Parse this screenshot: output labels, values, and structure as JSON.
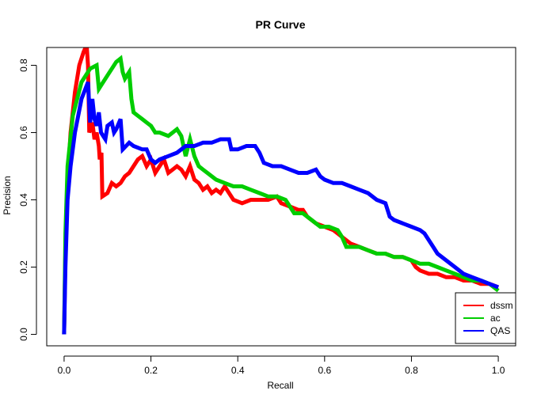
{
  "chart_data": {
    "type": "line",
    "title": "PR Curve",
    "xlabel": "Recall",
    "ylabel": "Precision",
    "xlim": [
      -0.04,
      1.04
    ],
    "ylim": [
      -0.034,
      0.853
    ],
    "xticks": [
      0.0,
      0.2,
      0.4,
      0.6,
      0.8,
      1.0
    ],
    "xtick_labels": [
      "0.0",
      "0.2",
      "0.4",
      "0.6",
      "0.8",
      "1.0"
    ],
    "yticks": [
      0.0,
      0.2,
      0.4,
      0.6,
      0.8
    ],
    "ytick_labels": [
      "0.0",
      "0.2",
      "0.4",
      "0.6",
      "0.8"
    ],
    "legend_position": "bottom-right",
    "series": [
      {
        "name": "dssm",
        "color": "#ff0000",
        "points": [
          [
            0.0,
            0.0
          ],
          [
            0.003,
            0.25
          ],
          [
            0.008,
            0.45
          ],
          [
            0.015,
            0.6
          ],
          [
            0.025,
            0.72
          ],
          [
            0.035,
            0.8
          ],
          [
            0.045,
            0.84
          ],
          [
            0.052,
            0.86
          ],
          [
            0.055,
            0.8
          ],
          [
            0.058,
            0.6
          ],
          [
            0.065,
            0.63
          ],
          [
            0.07,
            0.58
          ],
          [
            0.075,
            0.6
          ],
          [
            0.08,
            0.56
          ],
          [
            0.082,
            0.52
          ],
          [
            0.086,
            0.54
          ],
          [
            0.088,
            0.41
          ],
          [
            0.1,
            0.42
          ],
          [
            0.11,
            0.45
          ],
          [
            0.12,
            0.44
          ],
          [
            0.13,
            0.45
          ],
          [
            0.14,
            0.47
          ],
          [
            0.15,
            0.48
          ],
          [
            0.16,
            0.5
          ],
          [
            0.17,
            0.52
          ],
          [
            0.18,
            0.53
          ],
          [
            0.19,
            0.5
          ],
          [
            0.2,
            0.52
          ],
          [
            0.21,
            0.48
          ],
          [
            0.22,
            0.5
          ],
          [
            0.23,
            0.52
          ],
          [
            0.24,
            0.48
          ],
          [
            0.25,
            0.49
          ],
          [
            0.26,
            0.5
          ],
          [
            0.27,
            0.49
          ],
          [
            0.28,
            0.47
          ],
          [
            0.29,
            0.5
          ],
          [
            0.3,
            0.46
          ],
          [
            0.31,
            0.45
          ],
          [
            0.32,
            0.43
          ],
          [
            0.33,
            0.44
          ],
          [
            0.34,
            0.42
          ],
          [
            0.35,
            0.43
          ],
          [
            0.36,
            0.42
          ],
          [
            0.37,
            0.44
          ],
          [
            0.38,
            0.42
          ],
          [
            0.39,
            0.4
          ],
          [
            0.41,
            0.39
          ],
          [
            0.43,
            0.4
          ],
          [
            0.45,
            0.4
          ],
          [
            0.47,
            0.4
          ],
          [
            0.49,
            0.41
          ],
          [
            0.5,
            0.39
          ],
          [
            0.52,
            0.38
          ],
          [
            0.54,
            0.37
          ],
          [
            0.55,
            0.37
          ],
          [
            0.56,
            0.35
          ],
          [
            0.58,
            0.33
          ],
          [
            0.6,
            0.32
          ],
          [
            0.62,
            0.31
          ],
          [
            0.63,
            0.3
          ],
          [
            0.64,
            0.29
          ],
          [
            0.66,
            0.27
          ],
          [
            0.68,
            0.26
          ],
          [
            0.7,
            0.25
          ],
          [
            0.72,
            0.24
          ],
          [
            0.74,
            0.24
          ],
          [
            0.76,
            0.23
          ],
          [
            0.78,
            0.23
          ],
          [
            0.8,
            0.22
          ],
          [
            0.81,
            0.2
          ],
          [
            0.82,
            0.19
          ],
          [
            0.84,
            0.18
          ],
          [
            0.86,
            0.18
          ],
          [
            0.88,
            0.17
          ],
          [
            0.9,
            0.17
          ],
          [
            0.92,
            0.16
          ],
          [
            0.94,
            0.16
          ],
          [
            0.96,
            0.15
          ],
          [
            0.98,
            0.15
          ],
          [
            1.0,
            0.14
          ]
        ]
      },
      {
        "name": "ac",
        "color": "#00cd00",
        "points": [
          [
            0.0,
            0.0
          ],
          [
            0.003,
            0.3
          ],
          [
            0.008,
            0.5
          ],
          [
            0.02,
            0.65
          ],
          [
            0.04,
            0.75
          ],
          [
            0.06,
            0.79
          ],
          [
            0.075,
            0.8
          ],
          [
            0.08,
            0.73
          ],
          [
            0.1,
            0.77
          ],
          [
            0.12,
            0.81
          ],
          [
            0.13,
            0.82
          ],
          [
            0.135,
            0.78
          ],
          [
            0.14,
            0.76
          ],
          [
            0.15,
            0.78
          ],
          [
            0.155,
            0.7
          ],
          [
            0.16,
            0.66
          ],
          [
            0.17,
            0.65
          ],
          [
            0.18,
            0.64
          ],
          [
            0.19,
            0.63
          ],
          [
            0.2,
            0.62
          ],
          [
            0.21,
            0.6
          ],
          [
            0.22,
            0.6
          ],
          [
            0.24,
            0.59
          ],
          [
            0.26,
            0.61
          ],
          [
            0.27,
            0.59
          ],
          [
            0.28,
            0.53
          ],
          [
            0.29,
            0.58
          ],
          [
            0.3,
            0.53
          ],
          [
            0.31,
            0.5
          ],
          [
            0.32,
            0.49
          ],
          [
            0.33,
            0.48
          ],
          [
            0.35,
            0.46
          ],
          [
            0.37,
            0.45
          ],
          [
            0.39,
            0.44
          ],
          [
            0.41,
            0.44
          ],
          [
            0.43,
            0.43
          ],
          [
            0.45,
            0.42
          ],
          [
            0.47,
            0.41
          ],
          [
            0.49,
            0.41
          ],
          [
            0.51,
            0.4
          ],
          [
            0.52,
            0.38
          ],
          [
            0.53,
            0.36
          ],
          [
            0.55,
            0.36
          ],
          [
            0.57,
            0.34
          ],
          [
            0.59,
            0.32
          ],
          [
            0.61,
            0.32
          ],
          [
            0.63,
            0.31
          ],
          [
            0.64,
            0.29
          ],
          [
            0.65,
            0.26
          ],
          [
            0.66,
            0.26
          ],
          [
            0.68,
            0.26
          ],
          [
            0.7,
            0.25
          ],
          [
            0.72,
            0.24
          ],
          [
            0.74,
            0.24
          ],
          [
            0.76,
            0.23
          ],
          [
            0.78,
            0.23
          ],
          [
            0.8,
            0.22
          ],
          [
            0.82,
            0.21
          ],
          [
            0.84,
            0.21
          ],
          [
            0.86,
            0.2
          ],
          [
            0.88,
            0.19
          ],
          [
            0.9,
            0.18
          ],
          [
            0.92,
            0.17
          ],
          [
            0.94,
            0.16
          ],
          [
            0.96,
            0.16
          ],
          [
            0.98,
            0.15
          ],
          [
            1.0,
            0.13
          ]
        ]
      },
      {
        "name": "QAS",
        "color": "#0000ff",
        "points": [
          [
            0.0,
            0.0
          ],
          [
            0.003,
            0.2
          ],
          [
            0.008,
            0.4
          ],
          [
            0.015,
            0.5
          ],
          [
            0.025,
            0.6
          ],
          [
            0.04,
            0.7
          ],
          [
            0.055,
            0.75
          ],
          [
            0.06,
            0.63
          ],
          [
            0.065,
            0.7
          ],
          [
            0.07,
            0.64
          ],
          [
            0.075,
            0.62
          ],
          [
            0.08,
            0.66
          ],
          [
            0.085,
            0.6
          ],
          [
            0.095,
            0.58
          ],
          [
            0.1,
            0.62
          ],
          [
            0.11,
            0.63
          ],
          [
            0.115,
            0.6
          ],
          [
            0.12,
            0.61
          ],
          [
            0.13,
            0.64
          ],
          [
            0.135,
            0.55
          ],
          [
            0.15,
            0.57
          ],
          [
            0.16,
            0.56
          ],
          [
            0.18,
            0.55
          ],
          [
            0.19,
            0.55
          ],
          [
            0.2,
            0.52
          ],
          [
            0.21,
            0.51
          ],
          [
            0.22,
            0.52
          ],
          [
            0.24,
            0.53
          ],
          [
            0.26,
            0.54
          ],
          [
            0.28,
            0.56
          ],
          [
            0.3,
            0.56
          ],
          [
            0.32,
            0.57
          ],
          [
            0.34,
            0.57
          ],
          [
            0.36,
            0.58
          ],
          [
            0.38,
            0.58
          ],
          [
            0.385,
            0.55
          ],
          [
            0.4,
            0.55
          ],
          [
            0.42,
            0.56
          ],
          [
            0.44,
            0.56
          ],
          [
            0.45,
            0.54
          ],
          [
            0.46,
            0.51
          ],
          [
            0.48,
            0.5
          ],
          [
            0.5,
            0.5
          ],
          [
            0.52,
            0.49
          ],
          [
            0.54,
            0.48
          ],
          [
            0.56,
            0.48
          ],
          [
            0.58,
            0.49
          ],
          [
            0.59,
            0.47
          ],
          [
            0.6,
            0.46
          ],
          [
            0.62,
            0.45
          ],
          [
            0.64,
            0.45
          ],
          [
            0.66,
            0.44
          ],
          [
            0.68,
            0.43
          ],
          [
            0.7,
            0.42
          ],
          [
            0.72,
            0.4
          ],
          [
            0.74,
            0.39
          ],
          [
            0.75,
            0.35
          ],
          [
            0.76,
            0.34
          ],
          [
            0.78,
            0.33
          ],
          [
            0.8,
            0.32
          ],
          [
            0.82,
            0.31
          ],
          [
            0.83,
            0.3
          ],
          [
            0.84,
            0.28
          ],
          [
            0.85,
            0.26
          ],
          [
            0.86,
            0.24
          ],
          [
            0.88,
            0.22
          ],
          [
            0.9,
            0.2
          ],
          [
            0.92,
            0.18
          ],
          [
            0.94,
            0.17
          ],
          [
            0.96,
            0.16
          ],
          [
            0.98,
            0.15
          ],
          [
            1.0,
            0.14
          ]
        ]
      }
    ]
  }
}
